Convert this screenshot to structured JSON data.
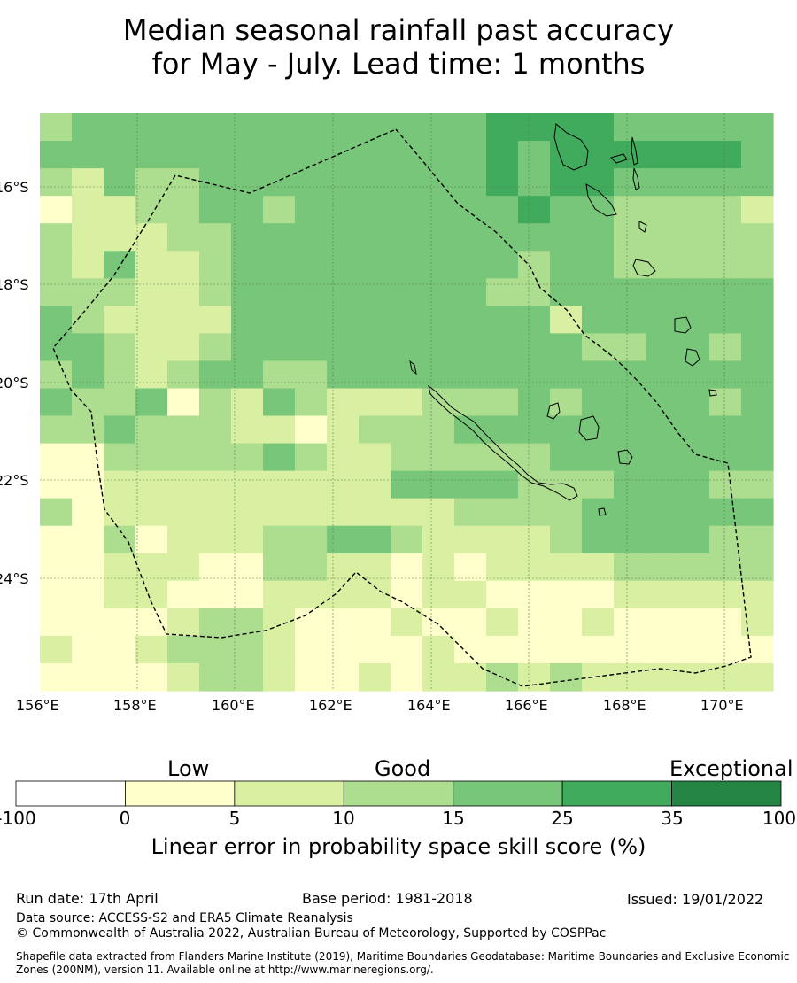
{
  "title": {
    "line1": "Median seasonal rainfall past accuracy",
    "line2": "for May - July. Lead time: 1 months"
  },
  "map": {
    "lat_labels": [
      "16°S",
      "18°S",
      "20°S",
      "22°S",
      "24°S"
    ],
    "lon_labels": [
      "156°E",
      "158°E",
      "160°E",
      "162°E",
      "164°E",
      "166°E",
      "168°E",
      "170°E"
    ]
  },
  "colorbar": {
    "category_labels": [
      "Low",
      "Good",
      "Exceptional"
    ],
    "tick_labels": [
      "-100",
      "0",
      "5",
      "10",
      "15",
      "25",
      "35",
      "100"
    ],
    "colors": [
      "#ffffff",
      "#ffffcc",
      "#d9f0a3",
      "#addd8e",
      "#78c679",
      "#41ab5d",
      "#238443"
    ],
    "title": "Linear error in probability space skill score (%)"
  },
  "footer": {
    "run_date": "Run date: 17th April",
    "base_period": "Base period: 1981-2018",
    "issued": "Issued: 19/01/2022",
    "data_source": "Data source: ACCESS-S2 and ERA5 Climate Reanalysis",
    "copyright": "© Commonwealth of Australia 2022, Australian Bureau of Meteorology, Supported by COSPPac",
    "shapefile_line1": "Shapefile data extracted from Flanders Marine Institute (2019), Maritime Boundaries Geodatabase: Maritime Boundaries and Exclusive Economic",
    "shapefile_line2": "Zones (200NM), version 11. Available online at http://www.marineregions.org/."
  }
}
